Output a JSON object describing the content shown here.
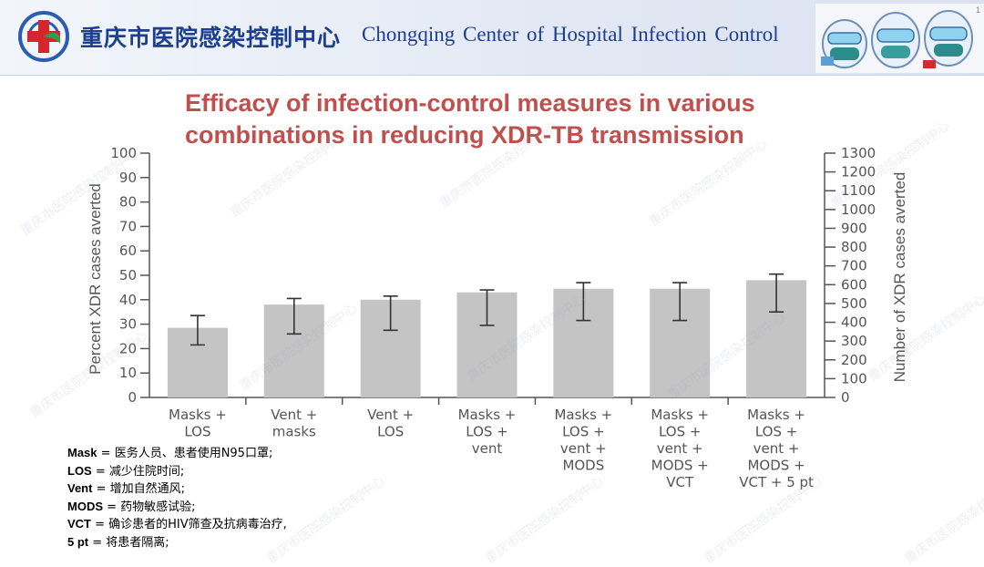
{
  "header": {
    "org_name_cn": "重庆市医院感染控制中心",
    "org_name_en": "Chongqing  Center of  Hospital Infection  Control",
    "page_mark": "1"
  },
  "slide_title_line1": "Efficacy of infection-control measures in various",
  "slide_title_line2": "combinations in reducing XDR-TB transmission",
  "watermark": "重庆市医院感染控制中心",
  "colors": {
    "bar": "#c4c4c4",
    "title": "#c0504d",
    "header_text": "#1c3f8f"
  },
  "chart_data": {
    "type": "bar",
    "categories": [
      [
        "Masks +",
        "LOS"
      ],
      [
        "Vent +",
        "masks"
      ],
      [
        "Vent +",
        "LOS"
      ],
      [
        "Masks +",
        "LOS +",
        "vent"
      ],
      [
        "Masks +",
        "LOS +",
        "vent +",
        "MODS"
      ],
      [
        "Masks +",
        "LOS +",
        "vent +",
        "MODS +",
        "VCT"
      ],
      [
        "Masks +",
        "LOS +",
        "vent +",
        "MODS +",
        "VCT + 5 pt"
      ]
    ],
    "values": [
      28.5,
      38,
      40,
      43,
      44.5,
      44.5,
      48
    ],
    "error_low": [
      21.5,
      26,
      27.5,
      29.5,
      31.5,
      31.5,
      35
    ],
    "error_high": [
      33.5,
      40.5,
      41.5,
      44,
      47,
      47,
      50.5
    ],
    "ylabel": "Percent XDR cases averted",
    "ylim": [
      0,
      100
    ],
    "yticks": [
      "0",
      "10",
      "20",
      "30",
      "40",
      "50",
      "60",
      "70",
      "80",
      "90",
      "100"
    ],
    "y2label": "Number of XDR cases averted",
    "y2lim": [
      0,
      1300
    ],
    "y2ticks": [
      "0",
      "100",
      "200",
      "300",
      "400",
      "500",
      "600",
      "700",
      "800",
      "900",
      "1000",
      "1100",
      "1200",
      "1300"
    ]
  },
  "legend": [
    {
      "abbr": "Mask",
      "text": " = 医务人员、患者使用N95口罩;"
    },
    {
      "abbr": "LOS",
      "text": " = 减少住院时间;"
    },
    {
      "abbr": "Vent",
      "text": " = 增加自然通风;"
    },
    {
      "abbr": "MODS",
      "text": " = 药物敏感试验;"
    },
    {
      "abbr": "VCT",
      "text": " = 确诊患者的HIV筛查及抗病毒治疗,"
    },
    {
      "abbr": "5 pt",
      "text": " = 将患者隔离;"
    }
  ]
}
